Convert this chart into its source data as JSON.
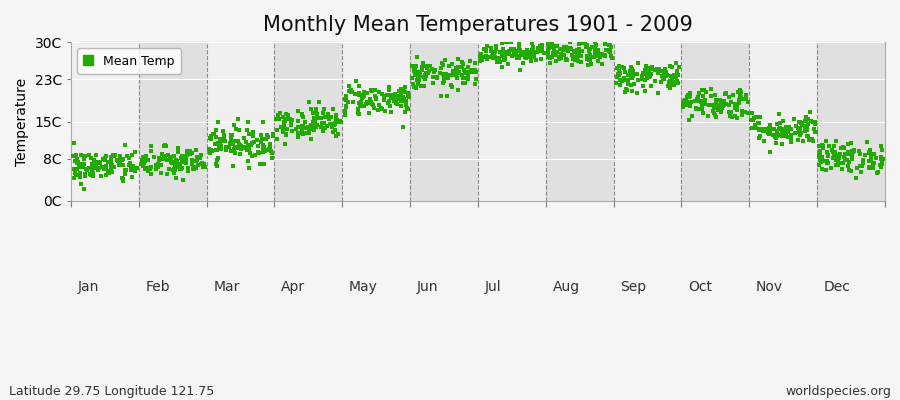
{
  "title": "Monthly Mean Temperatures 1901 - 2009",
  "ylabel": "Temperature",
  "footnote_left": "Latitude 29.75 Longitude 121.75",
  "footnote_right": "worldspecies.org",
  "legend_label": "Mean Temp",
  "marker_color": "#22aa00",
  "bg_color_light": "#f0f0f0",
  "bg_color_dark": "#e0e0e0",
  "fig_bg": "#f5f5f5",
  "yticks": [
    0,
    8,
    15,
    23,
    30
  ],
  "ytick_labels": [
    "0C",
    "8C",
    "15C",
    "23C",
    "30C"
  ],
  "ylim": [
    0,
    30
  ],
  "months": [
    "Jan",
    "Feb",
    "Mar",
    "Apr",
    "May",
    "Jun",
    "Jul",
    "Aug",
    "Sep",
    "Oct",
    "Nov",
    "Dec"
  ],
  "mean_temps": [
    6.5,
    7.2,
    10.8,
    14.8,
    19.2,
    23.8,
    28.0,
    27.8,
    23.5,
    18.5,
    13.5,
    8.2
  ],
  "std_temps": [
    1.6,
    1.5,
    1.7,
    1.5,
    1.5,
    1.4,
    1.1,
    1.1,
    1.4,
    1.5,
    1.5,
    1.5
  ],
  "n_years": 109,
  "seed": 42,
  "marker_size": 5,
  "title_fontsize": 15,
  "axis_fontsize": 10,
  "tick_fontsize": 10,
  "footnote_fontsize": 9
}
